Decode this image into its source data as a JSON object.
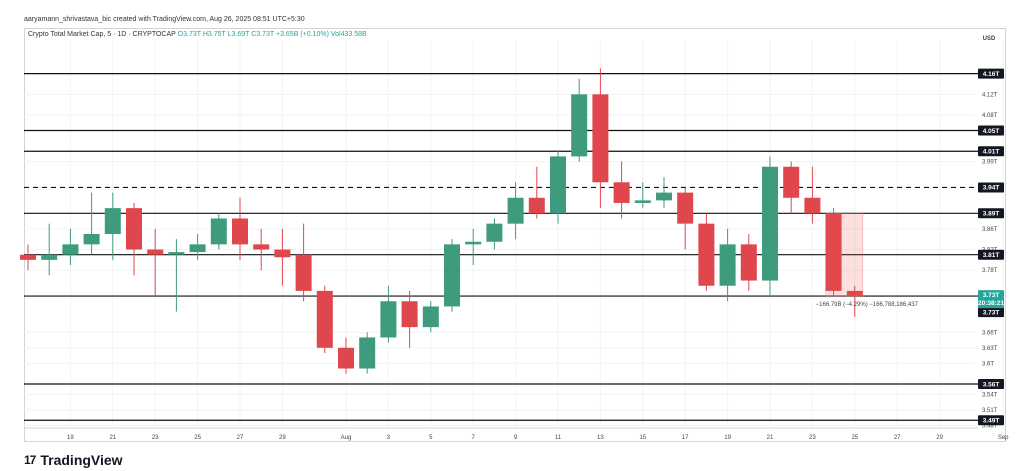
{
  "header": {
    "author_line": "aaryamann_shrivastava_bic created with TradingView.com, Aug 26, 2025 08:51 UTC+5:30"
  },
  "legend": {
    "symbol": "Crypto Total Market Cap, 5 · 1D · CRYPTOCAP",
    "ohlc": "O3.73T H3.75T L3.69T C3.73T +3.65B (+0.10%) Vol433.58B"
  },
  "footer": {
    "brand": "TradingView",
    "brand_mark": "17"
  },
  "colors": {
    "up": "#26a69a",
    "down": "#ef5350",
    "up_body": "#3e9b7d",
    "down_body": "#e0474c"
  },
  "chart_data": {
    "type": "candlestick",
    "currency_label": "USD",
    "x_tick_labels": [
      "19",
      "21",
      "23",
      "25",
      "27",
      "29",
      "Aug",
      "3",
      "5",
      "7",
      "9",
      "11",
      "13",
      "15",
      "17",
      "19",
      "21",
      "23",
      "25",
      "27",
      "29",
      "Sep"
    ],
    "x_tick_dates": [
      "2025-07-19",
      "2025-07-21",
      "2025-07-23",
      "2025-07-25",
      "2025-07-27",
      "2025-07-29",
      "2025-08-01",
      "2025-08-03",
      "2025-08-05",
      "2025-08-07",
      "2025-08-09",
      "2025-08-11",
      "2025-08-13",
      "2025-08-15",
      "2025-08-17",
      "2025-08-19",
      "2025-08-21",
      "2025-08-23",
      "2025-08-25",
      "2025-08-27",
      "2025-08-29",
      "2025-09-01"
    ],
    "y_tick_labels": [
      "4.12T",
      "4.08T",
      "3.99T",
      "3.86T",
      "3.82T",
      "3.78T",
      "3.66T",
      "3.63T",
      "3.6T",
      "3.54T",
      "3.51T",
      "3.48T"
    ],
    "y_tick_values": [
      4.12,
      4.08,
      3.99,
      3.86,
      3.82,
      3.78,
      3.66,
      3.63,
      3.6,
      3.54,
      3.51,
      3.48
    ],
    "y_range": [
      3.475,
      4.225
    ],
    "candles": [
      {
        "date": "2025-07-17",
        "o": 3.81,
        "h": 3.83,
        "l": 3.78,
        "c": 3.8
      },
      {
        "date": "2025-07-18",
        "o": 3.8,
        "h": 3.87,
        "l": 3.77,
        "c": 3.81
      },
      {
        "date": "2025-07-19",
        "o": 3.81,
        "h": 3.86,
        "l": 3.79,
        "c": 3.83
      },
      {
        "date": "2025-07-20",
        "o": 3.83,
        "h": 3.93,
        "l": 3.81,
        "c": 3.85
      },
      {
        "date": "2025-07-21",
        "o": 3.85,
        "h": 3.93,
        "l": 3.8,
        "c": 3.9
      },
      {
        "date": "2025-07-22",
        "o": 3.9,
        "h": 3.91,
        "l": 3.77,
        "c": 3.82
      },
      {
        "date": "2025-07-23",
        "o": 3.82,
        "h": 3.86,
        "l": 3.73,
        "c": 3.81
      },
      {
        "date": "2025-07-24",
        "o": 3.81,
        "h": 3.84,
        "l": 3.7,
        "c": 3.815
      },
      {
        "date": "2025-07-25",
        "o": 3.815,
        "h": 3.85,
        "l": 3.8,
        "c": 3.83
      },
      {
        "date": "2025-07-26",
        "o": 3.83,
        "h": 3.89,
        "l": 3.82,
        "c": 3.88
      },
      {
        "date": "2025-07-27",
        "o": 3.88,
        "h": 3.92,
        "l": 3.8,
        "c": 3.83
      },
      {
        "date": "2025-07-28",
        "o": 3.83,
        "h": 3.86,
        "l": 3.78,
        "c": 3.82
      },
      {
        "date": "2025-07-29",
        "o": 3.82,
        "h": 3.86,
        "l": 3.75,
        "c": 3.805
      },
      {
        "date": "2025-07-30",
        "o": 3.81,
        "h": 3.87,
        "l": 3.72,
        "c": 3.74
      },
      {
        "date": "2025-07-31",
        "o": 3.74,
        "h": 3.75,
        "l": 3.62,
        "c": 3.63
      },
      {
        "date": "2025-08-01",
        "o": 3.63,
        "h": 3.65,
        "l": 3.58,
        "c": 3.59
      },
      {
        "date": "2025-08-02",
        "o": 3.59,
        "h": 3.66,
        "l": 3.58,
        "c": 3.65
      },
      {
        "date": "2025-08-03",
        "o": 3.65,
        "h": 3.75,
        "l": 3.64,
        "c": 3.72
      },
      {
        "date": "2025-08-04",
        "o": 3.72,
        "h": 3.74,
        "l": 3.63,
        "c": 3.67
      },
      {
        "date": "2025-08-05",
        "o": 3.67,
        "h": 3.72,
        "l": 3.66,
        "c": 3.71
      },
      {
        "date": "2025-08-06",
        "o": 3.71,
        "h": 3.84,
        "l": 3.7,
        "c": 3.83
      },
      {
        "date": "2025-08-07",
        "o": 3.83,
        "h": 3.86,
        "l": 3.79,
        "c": 3.835
      },
      {
        "date": "2025-08-08",
        "o": 3.835,
        "h": 3.88,
        "l": 3.82,
        "c": 3.87
      },
      {
        "date": "2025-08-09",
        "o": 3.87,
        "h": 3.95,
        "l": 3.84,
        "c": 3.92
      },
      {
        "date": "2025-08-10",
        "o": 3.92,
        "h": 3.98,
        "l": 3.88,
        "c": 3.89
      },
      {
        "date": "2025-08-11",
        "o": 3.89,
        "h": 4.01,
        "l": 3.87,
        "c": 4.0
      },
      {
        "date": "2025-08-12",
        "o": 4.0,
        "h": 4.15,
        "l": 3.99,
        "c": 4.12
      },
      {
        "date": "2025-08-13",
        "o": 4.12,
        "h": 4.17,
        "l": 3.9,
        "c": 3.95
      },
      {
        "date": "2025-08-14",
        "o": 3.95,
        "h": 3.99,
        "l": 3.88,
        "c": 3.91
      },
      {
        "date": "2025-08-15",
        "o": 3.91,
        "h": 3.95,
        "l": 3.9,
        "c": 3.915
      },
      {
        "date": "2025-08-16",
        "o": 3.915,
        "h": 3.96,
        "l": 3.9,
        "c": 3.93
      },
      {
        "date": "2025-08-17",
        "o": 3.93,
        "h": 3.94,
        "l": 3.82,
        "c": 3.87
      },
      {
        "date": "2025-08-18",
        "o": 3.87,
        "h": 3.89,
        "l": 3.74,
        "c": 3.75
      },
      {
        "date": "2025-08-19",
        "o": 3.75,
        "h": 3.86,
        "l": 3.72,
        "c": 3.83
      },
      {
        "date": "2025-08-20",
        "o": 3.83,
        "h": 3.85,
        "l": 3.74,
        "c": 3.76
      },
      {
        "date": "2025-08-21",
        "o": 3.76,
        "h": 4.0,
        "l": 3.73,
        "c": 3.98
      },
      {
        "date": "2025-08-22",
        "o": 3.98,
        "h": 3.99,
        "l": 3.89,
        "c": 3.92
      },
      {
        "date": "2025-08-23",
        "o": 3.92,
        "h": 3.98,
        "l": 3.87,
        "c": 3.89
      },
      {
        "date": "2025-08-24",
        "o": 3.89,
        "h": 3.9,
        "l": 3.73,
        "c": 3.74
      },
      {
        "date": "2025-08-25",
        "o": 3.74,
        "h": 3.75,
        "l": 3.69,
        "c": 3.73
      }
    ],
    "horizontal_levels": [
      {
        "value": 4.16,
        "label": "4.16T",
        "style": "solid"
      },
      {
        "value": 4.05,
        "label": "4.05T",
        "style": "solid"
      },
      {
        "value": 4.01,
        "label": "4.01T",
        "style": "solid"
      },
      {
        "value": 3.94,
        "label": "3.94T",
        "style": "dashed"
      },
      {
        "value": 3.89,
        "label": "3.89T",
        "style": "solid"
      },
      {
        "value": 3.81,
        "label": "3.81T",
        "style": "solid"
      },
      {
        "value": 3.73,
        "label": "3.73T",
        "style": "solid"
      },
      {
        "value": 3.56,
        "label": "3.56T",
        "style": "solid"
      },
      {
        "value": 3.49,
        "label": "3.49T",
        "style": "solid"
      }
    ],
    "current_price": {
      "value": 3.73,
      "label": "3.73T",
      "countdown": "20:38:21"
    },
    "measure": {
      "from_date": "2025-08-24",
      "to_date": "2025-08-25",
      "from_value": 3.89,
      "to_value": 3.73,
      "label": "−166.79B (−4.29%) −166,788,186,437"
    }
  }
}
